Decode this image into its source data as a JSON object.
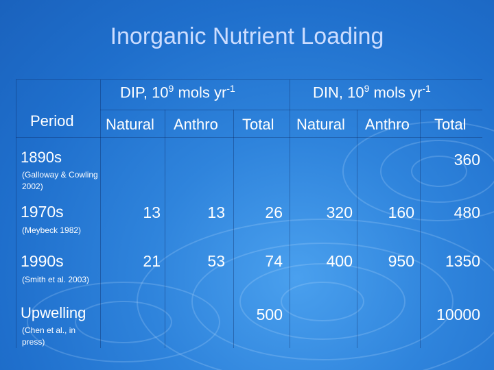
{
  "title": "Inorganic Nutrient Loading",
  "header": {
    "period": "Period",
    "dip_group": {
      "prefix": "DIP, 10",
      "exp": "9",
      "suffix": " mols yr",
      "unit_exp": "-1"
    },
    "din_group": {
      "prefix": "DIN, 10",
      "exp": "9",
      "suffix": " mols yr",
      "unit_exp": "-1"
    },
    "cols": [
      "Natural",
      "Anthro",
      "Total",
      "Natural",
      "Anthro",
      "Total"
    ]
  },
  "rows": [
    {
      "period": "1890s",
      "cite": "(Galloway & Cowling 2002)",
      "dip_natural": "",
      "dip_anthro": "",
      "dip_total": "",
      "din_natural": "",
      "din_anthro": "",
      "din_total": "360"
    },
    {
      "period": "1970s",
      "cite": "(Meybeck 1982)",
      "dip_natural": "13",
      "dip_anthro": "13",
      "dip_total": "26",
      "din_natural": "320",
      "din_anthro": "160",
      "din_total": "480"
    },
    {
      "period": "1990s",
      "cite": "(Smith et al. 2003)",
      "dip_natural": "21",
      "dip_anthro": "53",
      "dip_total": "74",
      "din_natural": "400",
      "din_anthro": "950",
      "din_total": "1350"
    },
    {
      "period": "Upwelling",
      "cite": "(Chen et al., in press)",
      "dip_natural": "",
      "dip_anthro": "",
      "dip_total": "500",
      "din_natural": "",
      "din_anthro": "",
      "din_total": "10000"
    }
  ]
}
